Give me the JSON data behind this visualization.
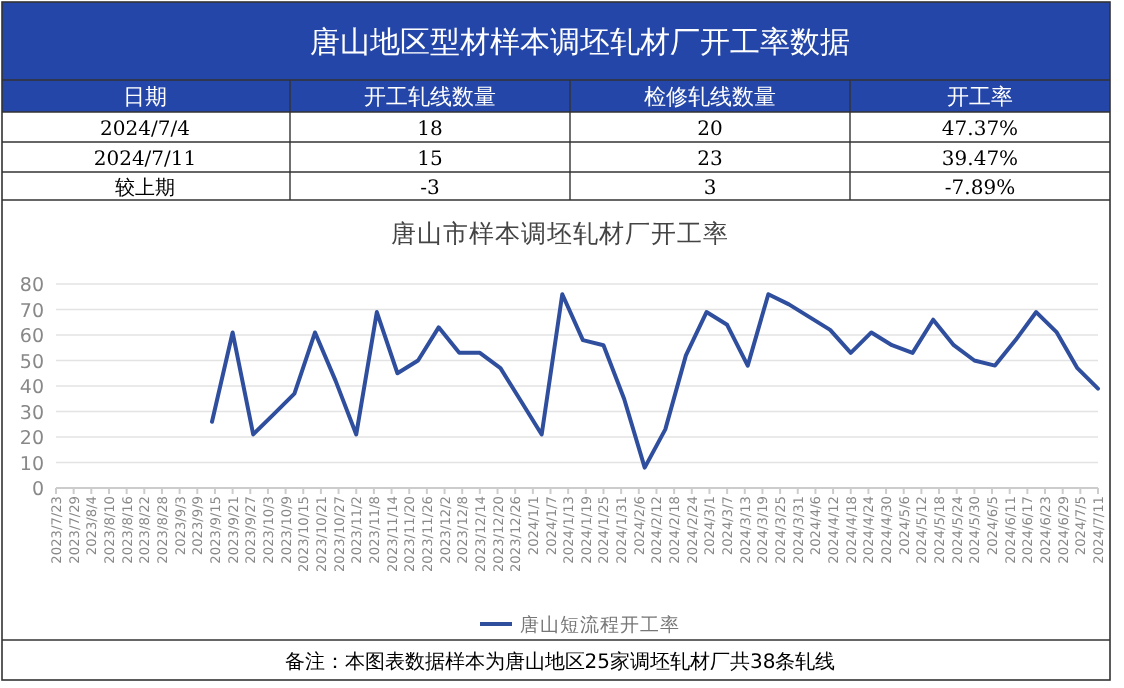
{
  "chart_data": {
    "type": "line",
    "title": "唐山地区型材样本调坯轧材厂开工率数据",
    "subtitle": "唐山市样本调坯轧材厂开工率",
    "annotations": [
      "日期",
      "开工轧线数量",
      "检修轧线数量",
      "开工率",
      "2024/7/4",
      "18",
      "20",
      "47.37%",
      "2024/7/11",
      "15",
      "23",
      "39.47%",
      "较上期",
      "-3",
      "3",
      "-7.89%",
      "备注：本图表数据样本为唐山地区25家调坯轧材厂共38条轧线"
    ],
    "series": [
      {
        "name": "唐山短流程开工率",
        "color": "#2f4f9e",
        "x": [
          "2023-09-14",
          "2023-09-21",
          "2023-09-28",
          "2023-10-05",
          "2023-10-12",
          "2023-10-19",
          "2023-10-26",
          "2023-11-02",
          "2023-11-09",
          "2023-11-16",
          "2023-11-23",
          "2023-11-30",
          "2023-12-07",
          "2023-12-14",
          "2023-12-21",
          "2023-12-28",
          "2024-01-04",
          "2024-01-11",
          "2024-01-18",
          "2024-01-25",
          "2024-02-01",
          "2024-02-08",
          "2024-02-15",
          "2024-02-22",
          "2024-02-29",
          "2024-03-07",
          "2024-03-14",
          "2024-03-21",
          "2024-03-28",
          "2024-04-04",
          "2024-04-11",
          "2024-04-18",
          "2024-04-25",
          "2024-05-02",
          "2024-05-09",
          "2024-05-16",
          "2024-05-23",
          "2024-05-30",
          "2024-06-06",
          "2024-06-13",
          "2024-06-20",
          "2024-06-27",
          "2024-07-04",
          "2024-07-11"
        ],
        "values": [
          26,
          61,
          21,
          29,
          37,
          61,
          42,
          21,
          69,
          45,
          50,
          63,
          53,
          53,
          47,
          34,
          21,
          76,
          58,
          56,
          35,
          8,
          23,
          52,
          69,
          64,
          48,
          76,
          72,
          67,
          62,
          53,
          61,
          56,
          53,
          66,
          56,
          50,
          48,
          58,
          69,
          61,
          47,
          39
        ]
      }
    ],
    "xlim": [
      "2023-07-23",
      "2024-07-11"
    ],
    "xticks": [
      {
        "value": "2023-07-23",
        "label": "2023/7/23"
      },
      {
        "value": "2023-07-29",
        "label": "2023/7/29"
      },
      {
        "value": "2023-08-04",
        "label": "2023/8/4"
      },
      {
        "value": "2023-08-10",
        "label": "2023/8/10"
      },
      {
        "value": "2023-08-16",
        "label": "2023/8/16"
      },
      {
        "value": "2023-08-22",
        "label": "2023/8/22"
      },
      {
        "value": "2023-08-28",
        "label": "2023/8/28"
      },
      {
        "value": "2023-09-03",
        "label": "2023/9/3"
      },
      {
        "value": "2023-09-09",
        "label": "2023/9/9"
      },
      {
        "value": "2023-09-15",
        "label": "2023/9/15"
      },
      {
        "value": "2023-09-21",
        "label": "2023/9/21"
      },
      {
        "value": "2023-09-27",
        "label": "2023/9/27"
      },
      {
        "value": "2023-10-03",
        "label": "2023/10/3"
      },
      {
        "value": "2023-10-09",
        "label": "2023/10/9"
      },
      {
        "value": "2023-10-15",
        "label": "2023/10/15"
      },
      {
        "value": "2023-10-21",
        "label": "2023/10/21"
      },
      {
        "value": "2023-10-27",
        "label": "2023/10/27"
      },
      {
        "value": "2023-11-02",
        "label": "2023/11/2"
      },
      {
        "value": "2023-11-08",
        "label": "2023/11/8"
      },
      {
        "value": "2023-11-14",
        "label": "2023/11/14"
      },
      {
        "value": "2023-11-20",
        "label": "2023/11/20"
      },
      {
        "value": "2023-11-26",
        "label": "2023/11/26"
      },
      {
        "value": "2023-12-02",
        "label": "2023/12/2"
      },
      {
        "value": "2023-12-08",
        "label": "2023/12/8"
      },
      {
        "value": "2023-12-14",
        "label": "2023/12/14"
      },
      {
        "value": "2023-12-20",
        "label": "2023/12/20"
      },
      {
        "value": "2023-12-26",
        "label": "2023/12/26"
      },
      {
        "value": "2024-01-01",
        "label": "2024/1/1"
      },
      {
        "value": "2024-01-07",
        "label": "2024/1/7"
      },
      {
        "value": "2024-01-13",
        "label": "2024/1/13"
      },
      {
        "value": "2024-01-19",
        "label": "2024/1/19"
      },
      {
        "value": "2024-01-25",
        "label": "2024/1/25"
      },
      {
        "value": "2024-01-31",
        "label": "2024/1/31"
      },
      {
        "value": "2024-02-06",
        "label": "2024/2/6"
      },
      {
        "value": "2024-02-12",
        "label": "2024/2/12"
      },
      {
        "value": "2024-02-18",
        "label": "2024/2/18"
      },
      {
        "value": "2024-02-24",
        "label": "2024/2/24"
      },
      {
        "value": "2024-03-01",
        "label": "2024/3/1"
      },
      {
        "value": "2024-03-07",
        "label": "2024/3/7"
      },
      {
        "value": "2024-03-13",
        "label": "2024/3/13"
      },
      {
        "value": "2024-03-19",
        "label": "2024/3/19"
      },
      {
        "value": "2024-03-25",
        "label": "2024/3/25"
      },
      {
        "value": "2024-03-31",
        "label": "2024/3/31"
      },
      {
        "value": "2024-04-06",
        "label": "2024/4/6"
      },
      {
        "value": "2024-04-12",
        "label": "2024/4/12"
      },
      {
        "value": "2024-04-18",
        "label": "2024/4/18"
      },
      {
        "value": "2024-04-24",
        "label": "2024/4/24"
      },
      {
        "value": "2024-04-30",
        "label": "2024/4/30"
      },
      {
        "value": "2024-05-06",
        "label": "2024/5/6"
      },
      {
        "value": "2024-05-12",
        "label": "2024/5/12"
      },
      {
        "value": "2024-05-18",
        "label": "2024/5/18"
      },
      {
        "value": "2024-05-24",
        "label": "2024/5/24"
      },
      {
        "value": "2024-05-30",
        "label": "2024/5/30"
      },
      {
        "value": "2024-06-05",
        "label": "2024/6/5"
      },
      {
        "value": "2024-06-11",
        "label": "2024/6/11"
      },
      {
        "value": "2024-06-17",
        "label": "2024/6/17"
      },
      {
        "value": "2024-06-23",
        "label": "2024/6/23"
      },
      {
        "value": "2024-06-29",
        "label": "2024/6/29"
      },
      {
        "value": "2024-07-05",
        "label": "2024/7/5"
      },
      {
        "value": "2024-07-11",
        "label": "2024/7/11"
      }
    ],
    "ylim": [
      0,
      80
    ],
    "yticks": [
      0,
      10,
      20,
      30,
      40,
      50,
      60,
      70,
      80
    ],
    "grid": "y",
    "legend": "bottom",
    "marker": "none",
    "line_style": "solid"
  }
}
